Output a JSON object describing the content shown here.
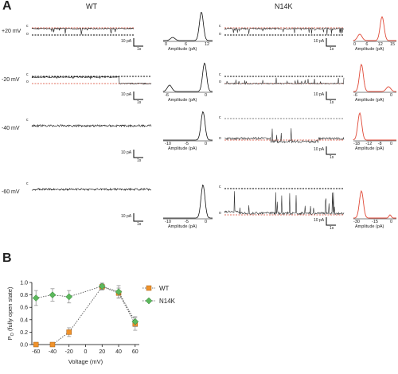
{
  "panel_a": {
    "letter": "A",
    "group_titles": [
      "WT",
      "N14K"
    ],
    "voltages": [
      "+20 mV",
      "-20 mV",
      "-40 mV",
      "-60 mV"
    ],
    "state_labels": {
      "closed": "c",
      "open": "o"
    },
    "scalebar": {
      "current": "10 pA",
      "time": "1s"
    },
    "hist_xlabel": "Amplitude (pA)",
    "wt_hist_ticks": [
      [
        "0",
        "6",
        "12"
      ],
      [
        "-6",
        "0"
      ],
      [
        "-10",
        "-5",
        "0"
      ],
      [
        "-10",
        "-5",
        "0"
      ]
    ],
    "n14k_hist_ticks": [
      [
        "0",
        "6",
        "12",
        "15"
      ],
      [
        "-6",
        "0"
      ],
      [
        "-18",
        "-12",
        "-8",
        "0"
      ],
      [
        "-30",
        "-15",
        "0"
      ]
    ],
    "colors": {
      "trace": "#1a1a1a",
      "dashed_open": "#000000",
      "dashed_red": "#d9402b",
      "n14k_hist": "#e04a38",
      "wt_hist": "#1a1a1a"
    }
  },
  "panel_b": {
    "letter": "B",
    "chart_data": {
      "type": "scatter",
      "xlabel": "Voltage (mV)",
      "ylabel": "PO (fully open state)",
      "ylabel_main": "P",
      "ylabel_sub": "O",
      "ylabel_rest": "(fully open state)",
      "x_ticks": [
        "-60",
        "-40",
        "-20",
        "0",
        "20",
        "40",
        "60"
      ],
      "y_ticks": [
        "0.0",
        "0.2",
        "0.4",
        "0.6",
        "0.8",
        "1.0"
      ],
      "xlim": [
        -65,
        65
      ],
      "ylim": [
        0,
        1.0
      ],
      "series": [
        {
          "name": "WT",
          "marker": "square",
          "color": "#f0922b",
          "x": [
            -60,
            -40,
            -20,
            20,
            40,
            60
          ],
          "y": [
            0.0,
            0.0,
            0.2,
            0.93,
            0.83,
            0.33
          ],
          "err": [
            0.0,
            0.0,
            0.07,
            0.05,
            0.08,
            0.1
          ]
        },
        {
          "name": "N14K",
          "marker": "diamond",
          "color": "#5cb85c",
          "x": [
            -60,
            -40,
            -20,
            20,
            40,
            60
          ],
          "y": [
            0.75,
            0.8,
            0.77,
            0.94,
            0.85,
            0.37
          ],
          "err": [
            0.12,
            0.1,
            0.1,
            0.05,
            0.1,
            0.08
          ]
        }
      ]
    }
  }
}
